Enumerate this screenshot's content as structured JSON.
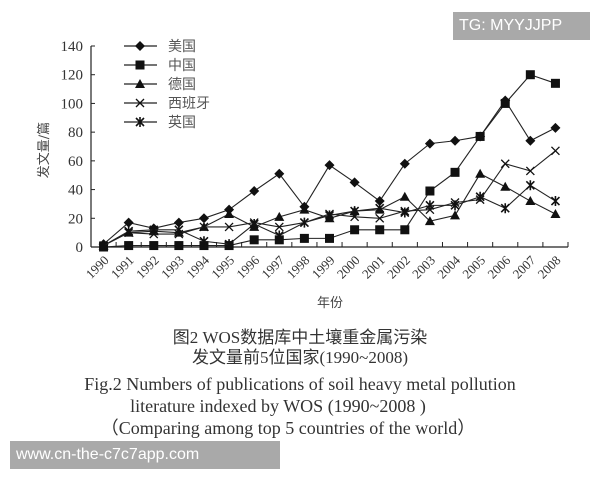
{
  "chart_data": {
    "type": "line",
    "xlabel": "年份",
    "ylabel": "发文量/篇",
    "ylim": [
      0,
      140
    ],
    "yticks": [
      0,
      20,
      40,
      60,
      80,
      100,
      120,
      140
    ],
    "categories": [
      "1990",
      "1991",
      "1992",
      "1993",
      "1994",
      "1995",
      "1996",
      "1997",
      "1998",
      "1999",
      "2000",
      "2001",
      "2002",
      "2003",
      "2004",
      "2005",
      "2006",
      "2007",
      "2008"
    ],
    "legend_placement": "top-left",
    "series": [
      {
        "name": "美国",
        "marker": "diamond",
        "values": [
          2,
          17,
          13,
          17,
          20,
          26,
          39,
          51,
          28,
          57,
          45,
          32,
          58,
          72,
          74,
          77,
          102,
          74,
          83
        ]
      },
      {
        "name": "中国",
        "marker": "square",
        "values": [
          0,
          1,
          1,
          1,
          1,
          1,
          5,
          5,
          6,
          6,
          12,
          12,
          12,
          39,
          52,
          77,
          100,
          120,
          114
        ]
      },
      {
        "name": "德国",
        "marker": "triangle",
        "values": [
          1,
          10,
          11,
          10,
          14,
          23,
          14,
          21,
          26,
          20,
          25,
          26,
          35,
          18,
          22,
          51,
          42,
          32,
          23
        ]
      },
      {
        "name": "西班牙",
        "marker": "x",
        "values": [
          1,
          10,
          9,
          9,
          14,
          14,
          17,
          14,
          17,
          23,
          21,
          20,
          25,
          26,
          31,
          33,
          58,
          53,
          67
        ]
      },
      {
        "name": "英国",
        "marker": "star",
        "values": [
          1,
          11,
          12,
          12,
          4,
          2,
          16,
          8,
          17,
          22,
          25,
          27,
          24,
          29,
          29,
          35,
          27,
          43,
          32
        ]
      }
    ]
  },
  "caption": {
    "cn_line1": "图2  WOS数据库中土壤重金属污染",
    "cn_line2": "发文量前5位国家(1990~2008)",
    "en_line1": "Fig.2  Numbers of publications of soil heavy metal pollution",
    "en_line2": "literature indexed by WOS (1990~2008 )",
    "en_line3": "（Comparing among top 5 countries of the world）"
  },
  "watermarks": {
    "top": "TG: MYYJJPP",
    "bottom": "www.cn-the-c7c7app.com"
  }
}
